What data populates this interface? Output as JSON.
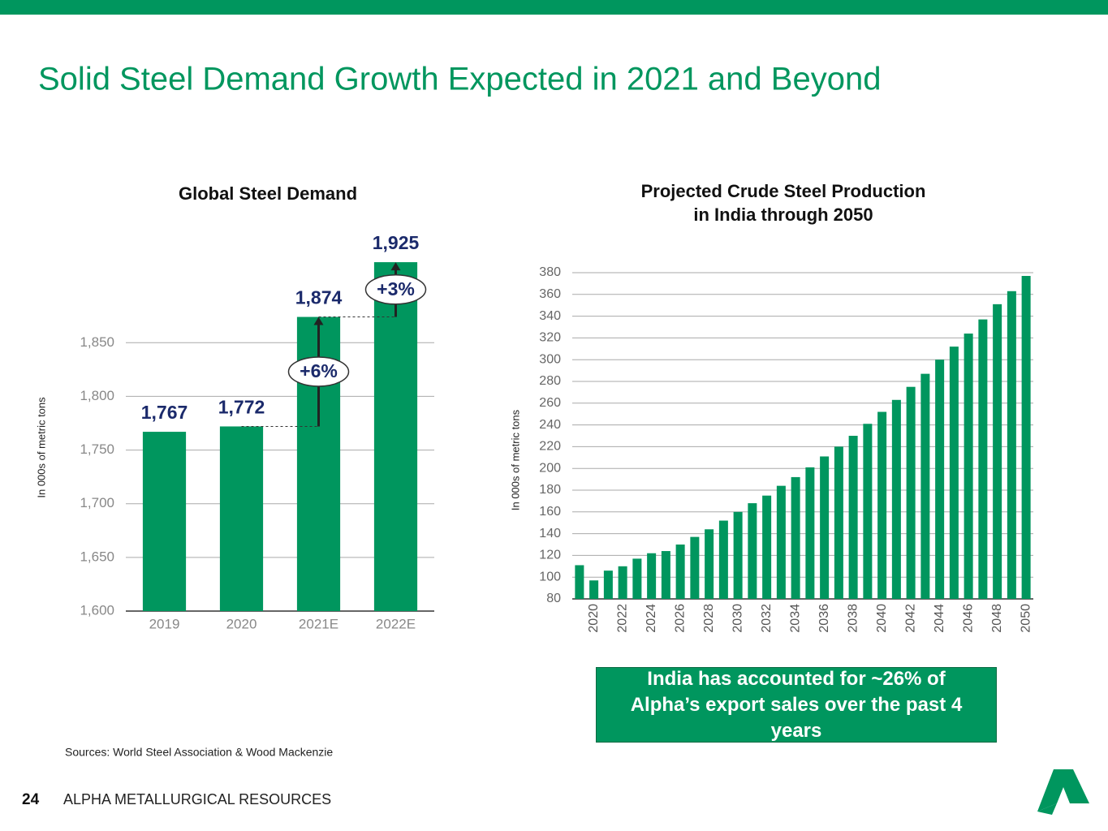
{
  "title": "Solid Steel Demand Growth Expected in 2021 and Beyond",
  "chart_data": [
    {
      "type": "bar",
      "title": "Global Steel Demand",
      "y_label": "In 000s of metric tons",
      "categories": [
        "2019",
        "2020",
        "2021E",
        "2022E"
      ],
      "values": [
        1767,
        1772,
        1874,
        1925
      ],
      "value_labels": [
        "1,767",
        "1,772",
        "1,874",
        "1,925"
      ],
      "color": "#00965e",
      "ylim": [
        1600,
        1950
      ],
      "yticks": [
        {
          "value": 1600,
          "label": "1,600"
        },
        {
          "value": 1650,
          "label": "1,650"
        },
        {
          "value": 1700,
          "label": "1,700"
        },
        {
          "value": 1750,
          "label": "1,750"
        },
        {
          "value": 1800,
          "label": "1,800"
        },
        {
          "value": 1850,
          "label": "1,850"
        }
      ],
      "grid": true,
      "annotations": [
        "+6%",
        "+3%"
      ]
    },
    {
      "type": "bar",
      "title": "Projected Crude Steel Production in India through 2050",
      "y_label": "In 000s of metric tons",
      "categories": [
        null,
        "2020",
        null,
        "2022",
        null,
        "2024",
        null,
        "2026",
        null,
        "2028",
        null,
        "2030",
        null,
        "2032",
        null,
        "2034",
        null,
        "2036",
        null,
        "2038",
        null,
        "2040",
        null,
        "2042",
        null,
        "2044",
        null,
        "2046",
        null,
        "2048",
        null,
        "2050"
      ],
      "values": [
        111,
        97,
        106,
        110,
        117,
        122,
        124,
        130,
        137,
        144,
        152,
        160,
        168,
        175,
        184,
        192,
        201,
        211,
        220,
        230,
        241,
        252,
        263,
        275,
        287,
        300,
        312,
        324,
        337,
        351,
        363,
        377
      ],
      "color": "#00965e",
      "ylim": [
        80,
        380
      ],
      "yticks": [
        80,
        100,
        120,
        140,
        160,
        180,
        200,
        220,
        240,
        260,
        280,
        300,
        320,
        340,
        360,
        380
      ],
      "grid": true
    }
  ],
  "callout": "India has accounted for ~26% of Alpha’s export sales over the past 4 years",
  "sources": "Sources: World Steel Association & Wood Mackenzie",
  "footer": {
    "page": "24",
    "company": "ALPHA METALLURGICAL RESOURCES"
  }
}
